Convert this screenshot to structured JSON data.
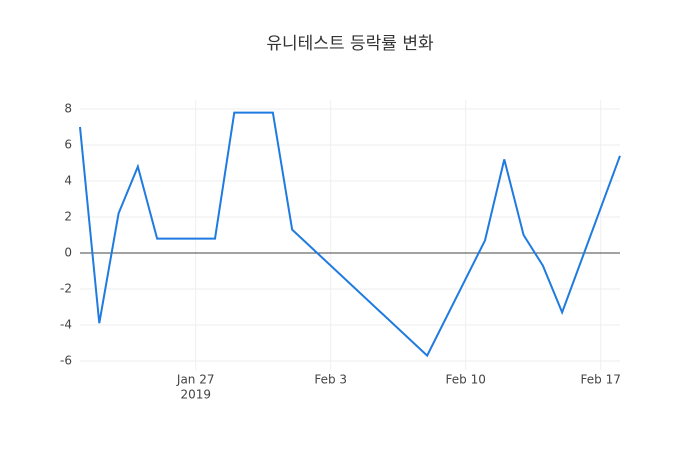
{
  "chart_data": {
    "type": "line",
    "title": "유니테스트 등락률 변화",
    "x": [
      "2019-01-21",
      "2019-01-22",
      "2019-01-23",
      "2019-01-24",
      "2019-01-25",
      "2019-01-28",
      "2019-01-29",
      "2019-01-31",
      "2019-02-01",
      "2019-02-08",
      "2019-02-11",
      "2019-02-12",
      "2019-02-13",
      "2019-02-14",
      "2019-02-15",
      "2019-02-18"
    ],
    "series": [
      {
        "color": "#1f7be0",
        "values": [
          7.0,
          -3.9,
          2.2,
          4.8,
          0.8,
          0.8,
          7.8,
          7.8,
          1.3,
          -5.7,
          0.7,
          5.2,
          1.0,
          -0.7,
          -3.3,
          5.4
        ]
      }
    ],
    "xlim": [
      "2019-01-21",
      "2019-02-18"
    ],
    "xticks": [
      {
        "value": "2019-01-27",
        "label": "Jan 27"
      },
      {
        "value": "2019-02-03",
        "label": "Feb 3"
      },
      {
        "value": "2019-02-10",
        "label": "Feb 10"
      },
      {
        "value": "2019-02-17",
        "label": "Feb 17"
      }
    ],
    "x_year": "2019",
    "ylim": [
      -6.5,
      8.5
    ],
    "yticks": [
      -6,
      -4,
      -2,
      0,
      2,
      4,
      6,
      8
    ],
    "grid": true,
    "zeroline": true
  }
}
